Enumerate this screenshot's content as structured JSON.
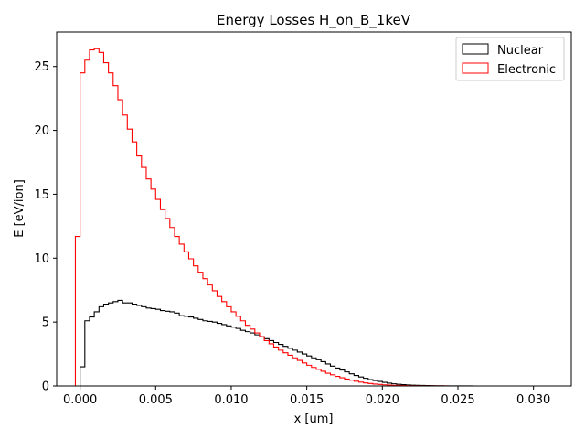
{
  "chart_data": {
    "type": "step-histogram",
    "title": "Energy Losses H_on_B_1keV",
    "xlabel": "x [um]",
    "ylabel": "E [eV/ion]",
    "xlim": [
      -0.00155,
      0.0325
    ],
    "ylim": [
      0,
      27.7
    ],
    "xticks": [
      0.0,
      0.005,
      0.01,
      0.015,
      0.02,
      0.025,
      0.03
    ],
    "xtick_labels": [
      "0.000",
      "0.005",
      "0.010",
      "0.015",
      "0.020",
      "0.025",
      "0.030"
    ],
    "yticks": [
      0,
      5,
      10,
      15,
      20,
      25
    ],
    "ytick_labels": [
      "0",
      "5",
      "10",
      "15",
      "20",
      "25"
    ],
    "legend_position": "top-right",
    "bin_width": 0.0003125,
    "series": [
      {
        "name": "Nuclear",
        "color": "#000000",
        "x_start": 0.0,
        "values": [
          1.5,
          5.1,
          5.4,
          5.8,
          6.2,
          6.4,
          6.5,
          6.6,
          6.7,
          6.5,
          6.5,
          6.4,
          6.3,
          6.2,
          6.1,
          6.05,
          6.0,
          5.9,
          5.85,
          5.8,
          5.7,
          5.5,
          5.45,
          5.4,
          5.3,
          5.2,
          5.1,
          5.05,
          5.0,
          4.9,
          4.8,
          4.7,
          4.6,
          4.5,
          4.35,
          4.25,
          4.15,
          4.0,
          3.85,
          3.7,
          3.55,
          3.4,
          3.25,
          3.1,
          2.95,
          2.8,
          2.65,
          2.5,
          2.35,
          2.2,
          2.05,
          1.9,
          1.72,
          1.55,
          1.4,
          1.25,
          1.1,
          0.95,
          0.82,
          0.7,
          0.6,
          0.5,
          0.42,
          0.35,
          0.28,
          0.22,
          0.17,
          0.13,
          0.1,
          0.08,
          0.06,
          0.05,
          0.04,
          0.03,
          0.02,
          0.015,
          0.01,
          0.008,
          0.006,
          0.004,
          0.003,
          0.002,
          0.0015,
          0.001,
          0.001
        ]
      },
      {
        "name": "Electronic",
        "color": "#ff0000",
        "x_start": -0.0003125,
        "values": [
          11.7,
          24.5,
          25.5,
          26.3,
          26.4,
          26.1,
          25.3,
          24.5,
          23.5,
          22.4,
          21.2,
          20.1,
          19.1,
          18.0,
          17.1,
          16.2,
          15.4,
          14.6,
          13.8,
          13.1,
          12.4,
          11.7,
          11.1,
          10.5,
          9.95,
          9.4,
          8.9,
          8.4,
          7.9,
          7.45,
          7.0,
          6.6,
          6.2,
          5.8,
          5.45,
          5.1,
          4.75,
          4.45,
          4.15,
          3.85,
          3.55,
          3.3,
          3.05,
          2.8,
          2.6,
          2.4,
          2.2,
          2.0,
          1.8,
          1.62,
          1.45,
          1.3,
          1.15,
          1.0,
          0.87,
          0.75,
          0.64,
          0.54,
          0.45,
          0.37,
          0.3,
          0.24,
          0.19,
          0.15,
          0.12,
          0.09,
          0.07,
          0.05,
          0.04,
          0.03,
          0.02,
          0.015,
          0.01,
          0.008,
          0.006,
          0.004,
          0.003,
          0.002,
          0.0015,
          0.001,
          0.001,
          0.001,
          0.001,
          0.0005,
          0.0005,
          0.0005,
          0.0005,
          0.0005,
          0.0005,
          0.0005,
          0.0005,
          0.0005,
          0.0005,
          0.0005,
          0.0005,
          0.0005,
          0.0005,
          0.0005,
          0.0005,
          0.0
        ]
      }
    ]
  }
}
